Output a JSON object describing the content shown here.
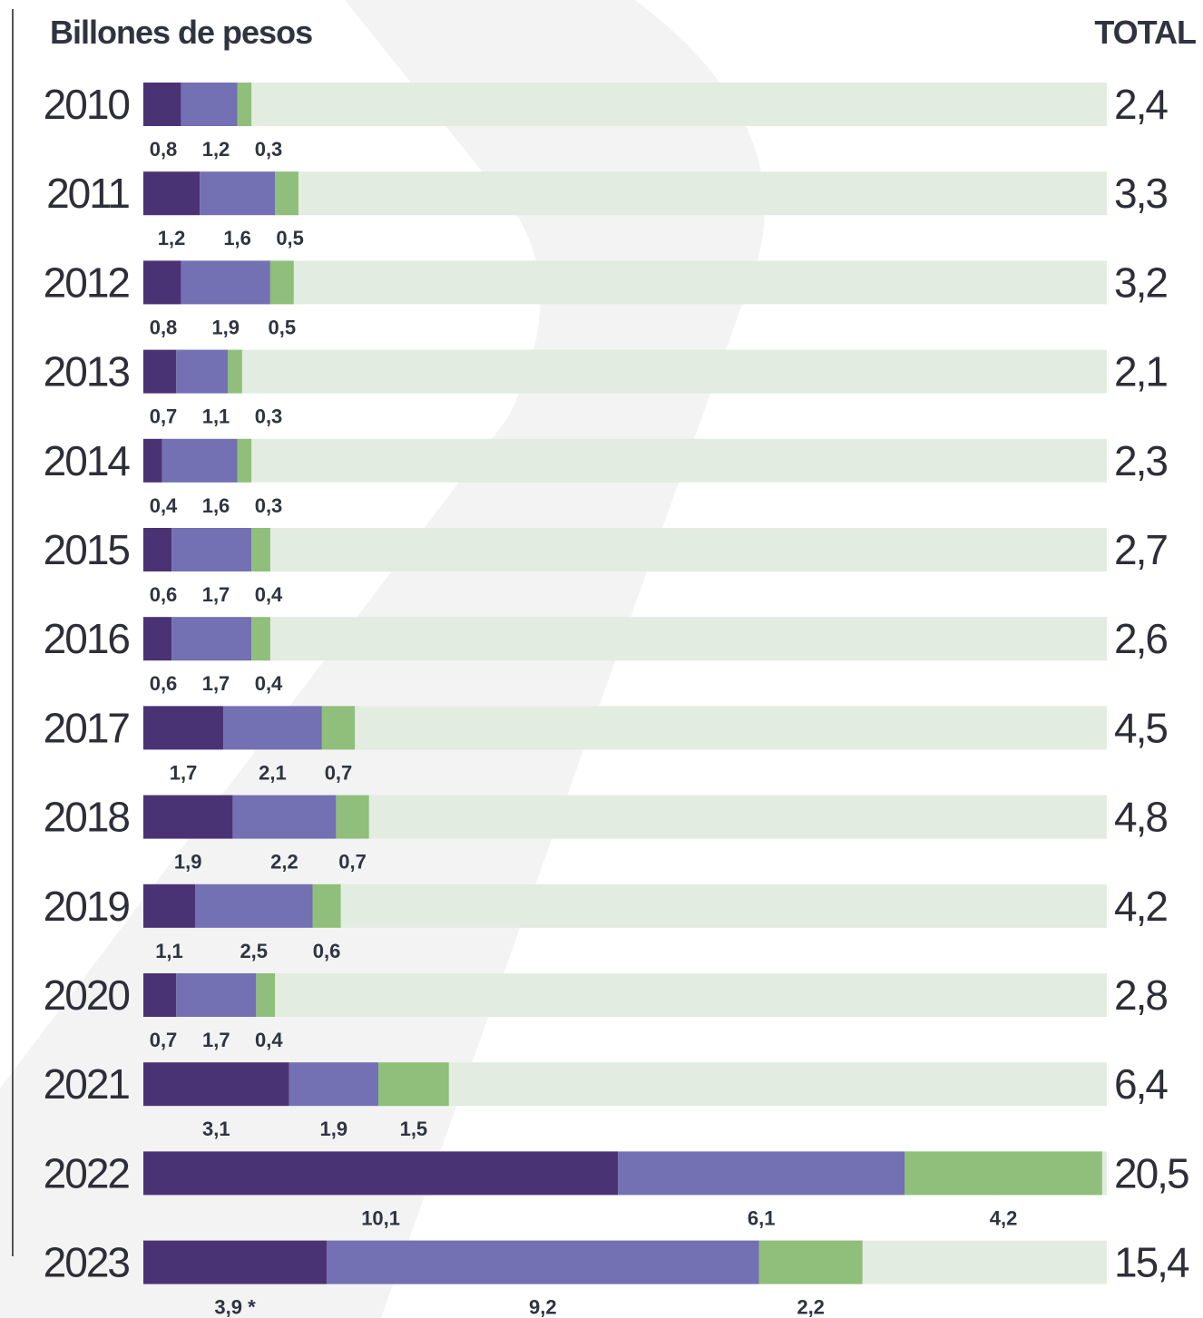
{
  "chart_data": {
    "type": "stacked-bar-horizontal",
    "title": "Billones de pesos",
    "total_label": "TOTAL",
    "categories": [
      "2010",
      "2011",
      "2012",
      "2013",
      "2014",
      "2015",
      "2016",
      "2017",
      "2018",
      "2019",
      "2020",
      "2021",
      "2022",
      "2023"
    ],
    "series": [
      {
        "color": "#4a3375",
        "values": [
          0.8,
          1.2,
          0.8,
          0.7,
          0.4,
          0.6,
          0.6,
          1.7,
          1.9,
          1.1,
          0.7,
          3.1,
          10.1,
          3.9
        ],
        "value_labels": [
          "0,8",
          "1,2",
          "0,8",
          "0,7",
          "0,4",
          "0,6",
          "0,6",
          "1,7",
          "1,9",
          "1,1",
          "0,7",
          "3,1",
          "10,1",
          "3,9 *"
        ]
      },
      {
        "color": "#7370b3",
        "values": [
          1.2,
          1.6,
          1.9,
          1.1,
          1.6,
          1.7,
          1.7,
          2.1,
          2.2,
          2.5,
          1.7,
          1.9,
          6.1,
          9.2
        ],
        "value_labels": [
          "1,2",
          "1,6",
          "1,9",
          "1,1",
          "1,6",
          "1,7",
          "1,7",
          "2,1",
          "2,2",
          "2,5",
          "1,7",
          "1,9",
          "6,1",
          "9,2"
        ]
      },
      {
        "color": "#8fbf7a",
        "values": [
          0.3,
          0.5,
          0.5,
          0.3,
          0.3,
          0.4,
          0.4,
          0.7,
          0.7,
          0.6,
          0.4,
          1.5,
          4.2,
          2.2
        ],
        "value_labels": [
          "0,3",
          "0,5",
          "0,5",
          "0,3",
          "0,3",
          "0,4",
          "0,4",
          "0,7",
          "0,7",
          "0,6",
          "0,4",
          "1,5",
          "4,2",
          "2,2"
        ]
      }
    ],
    "totals": [
      2.4,
      3.3,
      3.2,
      2.1,
      2.3,
      2.7,
      2.6,
      4.5,
      4.8,
      4.2,
      2.8,
      6.4,
      20.5,
      15.4
    ],
    "totals_labels": [
      "2,4",
      "3,3",
      "3,2",
      "2,1",
      "2,3",
      "2,7",
      "2,6",
      "4,5",
      "4,8",
      "4,2",
      "2,8",
      "6,4",
      "20,5",
      "15,4"
    ],
    "track_color": "#e3ece0"
  }
}
